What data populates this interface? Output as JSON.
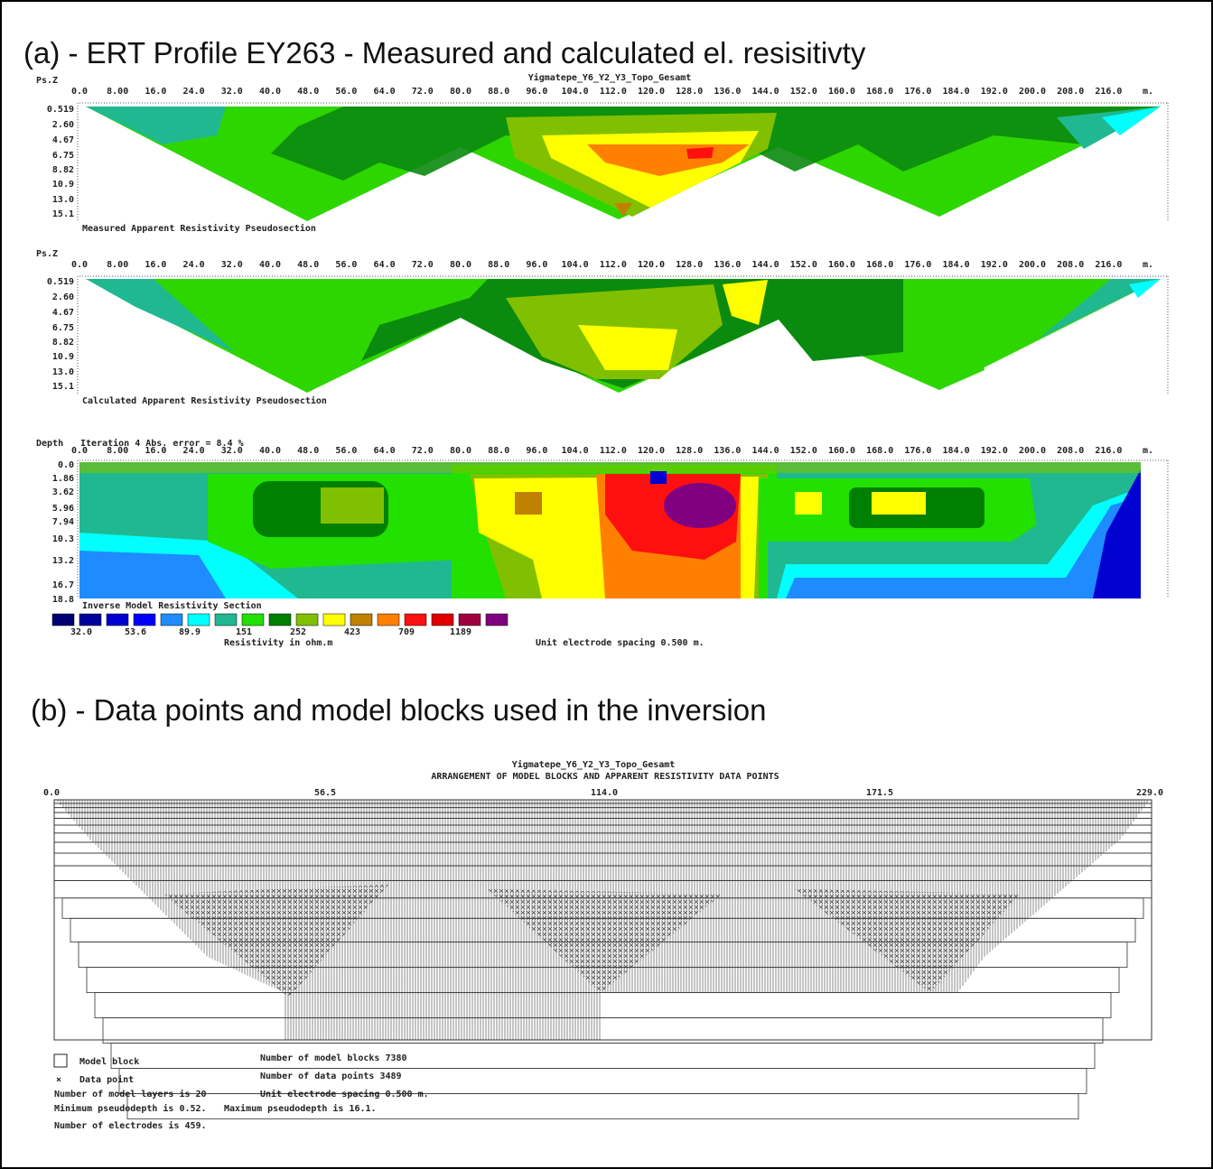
{
  "panel_a": {
    "title": "(a) - ERT Profile EY263 - Measured and calculated el. resisitivty",
    "file_name": "Yigmatepe_Y6_Y2_Y3_Topo_Gesamt",
    "x_ticks": [
      "0.0",
      "8.00",
      "16.0",
      "24.0",
      "32.0",
      "40.0",
      "48.0",
      "56.0",
      "64.0",
      "72.0",
      "80.0",
      "88.0",
      "96.0",
      "104.0",
      "112.0",
      "120.0",
      "128.0",
      "136.0",
      "144.0",
      "152.0",
      "160.0",
      "168.0",
      "176.0",
      "184.0",
      "192.0",
      "200.0",
      "208.0",
      "216.0"
    ],
    "x_unit": "m.",
    "measured": {
      "axis_label": "Ps.Z",
      "depth_ticks": [
        "0.519",
        "2.60",
        "4.67",
        "6.75",
        "8.82",
        "10.9",
        "13.0",
        "15.1"
      ],
      "caption": "Measured Apparent Resistivity Pseudosection"
    },
    "calculated": {
      "axis_label": "Ps.Z",
      "depth_ticks": [
        "0.519",
        "2.60",
        "4.67",
        "6.75",
        "8.82",
        "10.9",
        "13.0",
        "15.1"
      ],
      "caption": "Calculated Apparent Resistivity Pseudosection"
    },
    "model": {
      "axis_label": "Depth",
      "iteration": "Iteration 4 Abs. error = 8.4 %",
      "depth_ticks": [
        "0.0",
        "1.86",
        "3.62",
        "5.96",
        "7.94",
        "10.3",
        "13.2",
        "16.7",
        "18.8"
      ],
      "caption": "Inverse Model Resistivity Section"
    },
    "legend": {
      "colors": [
        "#000070",
        "#00009a",
        "#0000d0",
        "#0000ff",
        "#1e8cff",
        "#00ffff",
        "#20b890",
        "#22e000",
        "#008000",
        "#80c000",
        "#ffff00",
        "#c08000",
        "#ff8000",
        "#ff1010",
        "#e00000",
        "#a00040",
        "#800080"
      ],
      "labels": [
        "32.0",
        "53.6",
        "89.9",
        "151",
        "252",
        "423",
        "709",
        "1189"
      ],
      "unit_label": "Resistivity in ohm.m",
      "spacing_note": "Unit electrode spacing 0.500 m."
    }
  },
  "panel_b": {
    "title": "(b) - Data points and model blocks used in the inversion",
    "file_name": "Yigmatepe_Y6_Y2_Y3_Topo_Gesamt",
    "subtitle": "ARRANGEMENT OF MODEL BLOCKS AND APPARENT RESISTIVITY DATA POINTS",
    "x_ticks": [
      "0.0",
      "56.5",
      "114.0",
      "171.5",
      "229.0"
    ],
    "legend": {
      "model_block": "Model block",
      "data_point": "Data point"
    },
    "info": {
      "layers": "Number of model layers is 20",
      "min_depth": "Minimum pseudodepth is 0.52.",
      "max_depth": "Maximum pseudodepth is 16.1.",
      "electrodes": "Number of electrodes is 459.",
      "blocks": "Number of model blocks 7380",
      "points": "Number of data points 3489",
      "spacing": "Unit electrode spacing 0.500 m."
    }
  }
}
